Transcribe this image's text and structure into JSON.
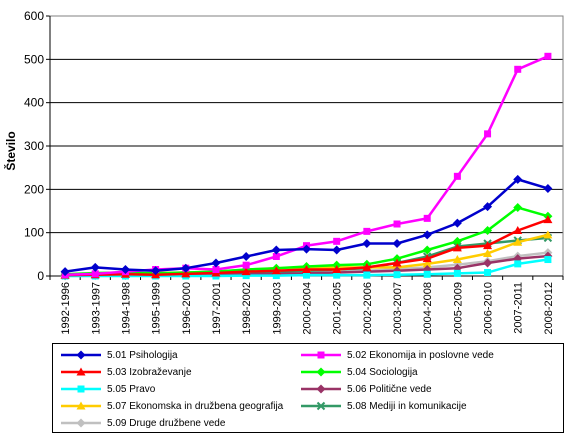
{
  "chart_data": {
    "type": "line",
    "title": "",
    "xlabel": "",
    "ylabel": "Število",
    "ylim": [
      0,
      600
    ],
    "yticks": [
      "0",
      "100",
      "200",
      "300",
      "400",
      "500",
      "600"
    ],
    "grid": "horizontal",
    "legend_position": "bottom",
    "categories": [
      "1992-1996",
      "1993-1997",
      "1994-1998",
      "1995-1999",
      "1996-2000",
      "1997-2001",
      "1998-2002",
      "1999-2003",
      "2000-2004",
      "2001-2005",
      "2002-2006",
      "2003-2007",
      "2004-2008",
      "2005-2009",
      "2006-2010",
      "2007-2011",
      "2008-2012"
    ],
    "series": [
      {
        "name": "5.01 Psihologija",
        "color": "#0000cc",
        "marker": "diamond",
        "values": [
          10,
          20,
          15,
          12,
          18,
          30,
          45,
          60,
          62,
          60,
          75,
          75,
          95,
          122,
          160,
          223,
          202
        ]
      },
      {
        "name": "5.02 Ekonomija in poslovne vede",
        "color": "#ff00ff",
        "marker": "square",
        "values": [
          3,
          5,
          10,
          15,
          18,
          15,
          25,
          45,
          70,
          80,
          103,
          120,
          133,
          230,
          328,
          477,
          507
        ]
      },
      {
        "name": "5.03 Izobraževanje",
        "color": "#ff0000",
        "marker": "triangle",
        "values": [
          2,
          3,
          4,
          3,
          5,
          7,
          10,
          12,
          15,
          15,
          20,
          30,
          40,
          65,
          70,
          105,
          130
        ]
      },
      {
        "name": "5.04 Sociologija",
        "color": "#00ff00",
        "marker": "diamond",
        "values": [
          4,
          7,
          8,
          6,
          8,
          10,
          15,
          18,
          22,
          25,
          27,
          40,
          60,
          80,
          105,
          158,
          138
        ]
      },
      {
        "name": "5.05 Pravo",
        "color": "#00ffff",
        "marker": "square",
        "values": [
          0,
          0,
          0,
          0,
          0,
          0,
          1,
          1,
          2,
          2,
          2,
          3,
          4,
          6,
          8,
          28,
          38
        ]
      },
      {
        "name": "5.06 Politične vede",
        "color": "#993366",
        "marker": "diamond",
        "values": [
          1,
          2,
          2,
          2,
          3,
          3,
          4,
          5,
          6,
          8,
          10,
          12,
          15,
          18,
          30,
          40,
          46
        ]
      },
      {
        "name": "5.07 Ekonomska in družbena geografija",
        "color": "#ffcc00",
        "marker": "triangle",
        "values": [
          3,
          4,
          6,
          7,
          8,
          10,
          14,
          18,
          20,
          20,
          20,
          20,
          28,
          38,
          52,
          78,
          95
        ]
      },
      {
        "name": "5.08 Mediji in komunikacije",
        "color": "#339966",
        "marker": "x",
        "values": [
          1,
          2,
          3,
          3,
          4,
          5,
          8,
          10,
          12,
          15,
          18,
          30,
          45,
          68,
          75,
          82,
          88
        ]
      },
      {
        "name": "5.09 Druge družbene vede",
        "color": "#c0c0c0",
        "marker": "diamond",
        "values": [
          0,
          1,
          1,
          2,
          2,
          3,
          4,
          6,
          8,
          9,
          12,
          16,
          20,
          26,
          34,
          46,
          54
        ]
      }
    ]
  }
}
